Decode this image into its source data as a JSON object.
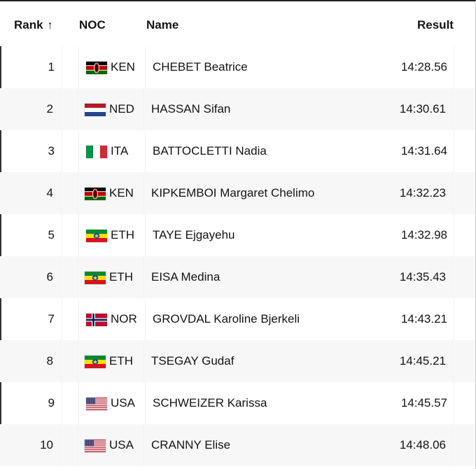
{
  "table": {
    "headers": {
      "rank": "Rank",
      "rank_sort_glyph": "↑",
      "noc": "NOC",
      "name": "Name",
      "result": "Result"
    },
    "rows": [
      {
        "rank": "1",
        "noc": "KEN",
        "flag_icon": "kenya-flag-icon",
        "name": "CHEBET Beatrice",
        "result": "14:28.56"
      },
      {
        "rank": "2",
        "noc": "NED",
        "flag_icon": "netherlands-flag-icon",
        "name": "HASSAN Sifan",
        "result": "14:30.61"
      },
      {
        "rank": "3",
        "noc": "ITA",
        "flag_icon": "italy-flag-icon",
        "name": "BATTOCLETTI Nadia",
        "result": "14:31.64"
      },
      {
        "rank": "4",
        "noc": "KEN",
        "flag_icon": "kenya-flag-icon",
        "name": "KIPKEMBOI Margaret Chelimo",
        "result": "14:32.23"
      },
      {
        "rank": "5",
        "noc": "ETH",
        "flag_icon": "ethiopia-flag-icon",
        "name": "TAYE Ejgayehu",
        "result": "14:32.98"
      },
      {
        "rank": "6",
        "noc": "ETH",
        "flag_icon": "ethiopia-flag-icon",
        "name": "EISA Medina",
        "result": "14:35.43"
      },
      {
        "rank": "7",
        "noc": "NOR",
        "flag_icon": "norway-flag-icon",
        "name": "GROVDAL Karoline Bjerkeli",
        "result": "14:43.21"
      },
      {
        "rank": "8",
        "noc": "ETH",
        "flag_icon": "ethiopia-flag-icon",
        "name": "TSEGAY Gudaf",
        "result": "14:45.21"
      },
      {
        "rank": "9",
        "noc": "USA",
        "flag_icon": "usa-flag-icon",
        "name": "SCHWEIZER Karissa",
        "result": "14:45.57"
      },
      {
        "rank": "10",
        "noc": "USA",
        "flag_icon": "usa-flag-icon",
        "name": "CRANNY Elise",
        "result": "14:48.06"
      }
    ]
  },
  "colors": {
    "row_alt_background": "#f7f7f7",
    "row_marker": "#333333",
    "header_rule": "#222222"
  }
}
